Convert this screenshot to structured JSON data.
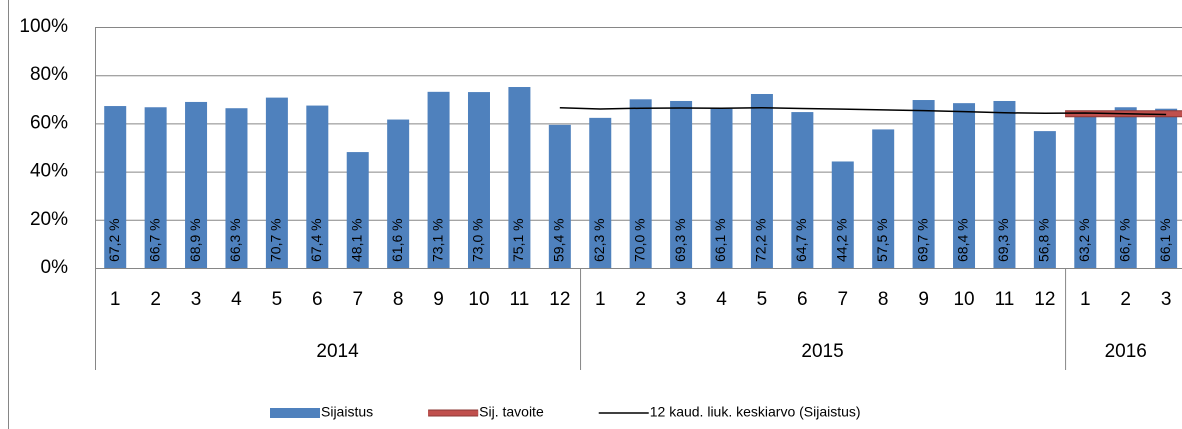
{
  "chart_data": {
    "type": "bar",
    "groups": [
      {
        "name": "2014",
        "categories": [
          "1",
          "2",
          "3",
          "4",
          "5",
          "6",
          "7",
          "8",
          "9",
          "10",
          "11",
          "12"
        ]
      },
      {
        "name": "2015",
        "categories": [
          "1",
          "2",
          "3",
          "4",
          "5",
          "6",
          "7",
          "8",
          "9",
          "10",
          "11",
          "12"
        ]
      },
      {
        "name": "2016",
        "categories": [
          "1",
          "2",
          "3"
        ]
      }
    ],
    "series": [
      {
        "name": "Sijaistus",
        "type": "bar",
        "color": "#4f81bd",
        "values": [
          67.2,
          66.7,
          68.9,
          66.3,
          70.7,
          67.4,
          48.1,
          61.6,
          73.1,
          73.0,
          75.1,
          59.4,
          62.3,
          70.0,
          69.3,
          66.1,
          72.2,
          64.7,
          44.2,
          57.5,
          69.7,
          68.4,
          69.3,
          56.8,
          63.2,
          66.7,
          66.1
        ],
        "value_labels": [
          "67,2 %",
          "66,7 %",
          "68,9 %",
          "66,3 %",
          "70,7 %",
          "67,4 %",
          "48,1 %",
          "61,6 %",
          "73,1 %",
          "73,0 %",
          "75,1 %",
          "59,4 %",
          "62,3 %",
          "70,0 %",
          "69,3 %",
          "66,1 %",
          "72,2 %",
          "64,7 %",
          "44,2 %",
          "57,5 %",
          "69,7 %",
          "68,4 %",
          "69,3 %",
          "56,8 %",
          "63,2 %",
          "66,7 %",
          "66,1 %"
        ]
      },
      {
        "name": "Sij. tavoite",
        "type": "line",
        "color": "#c0504d",
        "values": [
          null,
          null,
          null,
          null,
          null,
          null,
          null,
          null,
          null,
          null,
          null,
          null,
          null,
          null,
          null,
          null,
          null,
          null,
          null,
          null,
          null,
          null,
          null,
          null,
          64,
          64,
          64
        ]
      },
      {
        "name": "12 kaud. liuk. keskiarvo (Sijaistus)",
        "type": "line",
        "color": "#000000",
        "values": [
          null,
          null,
          null,
          null,
          null,
          null,
          null,
          null,
          null,
          null,
          null,
          66.5,
          66.0,
          66.3,
          66.4,
          66.3,
          66.5,
          66.2,
          65.9,
          65.6,
          65.3,
          64.9,
          64.4,
          64.2,
          64.3,
          64.0,
          63.7
        ]
      }
    ],
    "ylim": [
      0,
      100
    ],
    "yticks": [
      {
        "value": 0,
        "label": "0%"
      },
      {
        "value": 20,
        "label": "20%"
      },
      {
        "value": 40,
        "label": "40%"
      },
      {
        "value": 60,
        "label": "60%"
      },
      {
        "value": 80,
        "label": "80%"
      },
      {
        "value": 100,
        "label": "100%"
      }
    ],
    "grid": true,
    "legend": "bottom"
  }
}
